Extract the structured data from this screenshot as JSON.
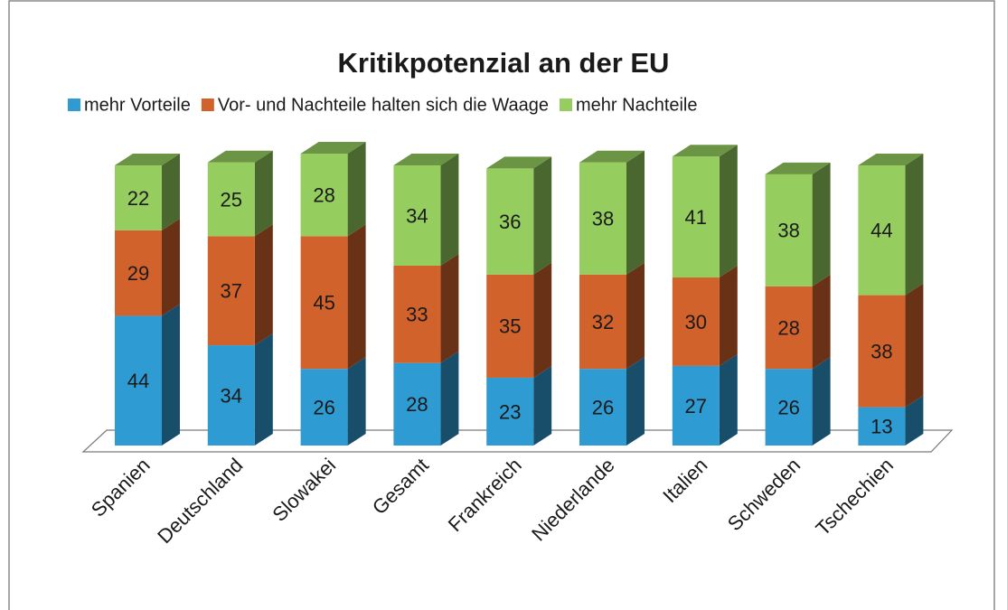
{
  "chart_data": {
    "type": "bar3d_stacked",
    "title": "Kritikpotenzial an der EU",
    "categories": [
      "Spanien",
      "Deutschland",
      "Slowakei",
      "Gesamt",
      "Frankreich",
      "Niederlande",
      "Italien",
      "Schweden",
      "Tschechien"
    ],
    "series": [
      {
        "name": "mehr Vorteile",
        "color": "#2f9bd3",
        "values": [
          44,
          34,
          26,
          28,
          23,
          26,
          27,
          26,
          13
        ]
      },
      {
        "name": "Vor- und Nachteile halten sich die Waage",
        "color": "#d2622b",
        "values": [
          29,
          37,
          45,
          33,
          35,
          32,
          30,
          28,
          38
        ]
      },
      {
        "name": "mehr Nachteile",
        "color": "#95cd5f",
        "values": [
          22,
          25,
          28,
          34,
          36,
          38,
          41,
          38,
          44
        ]
      }
    ],
    "legend": "top"
  }
}
